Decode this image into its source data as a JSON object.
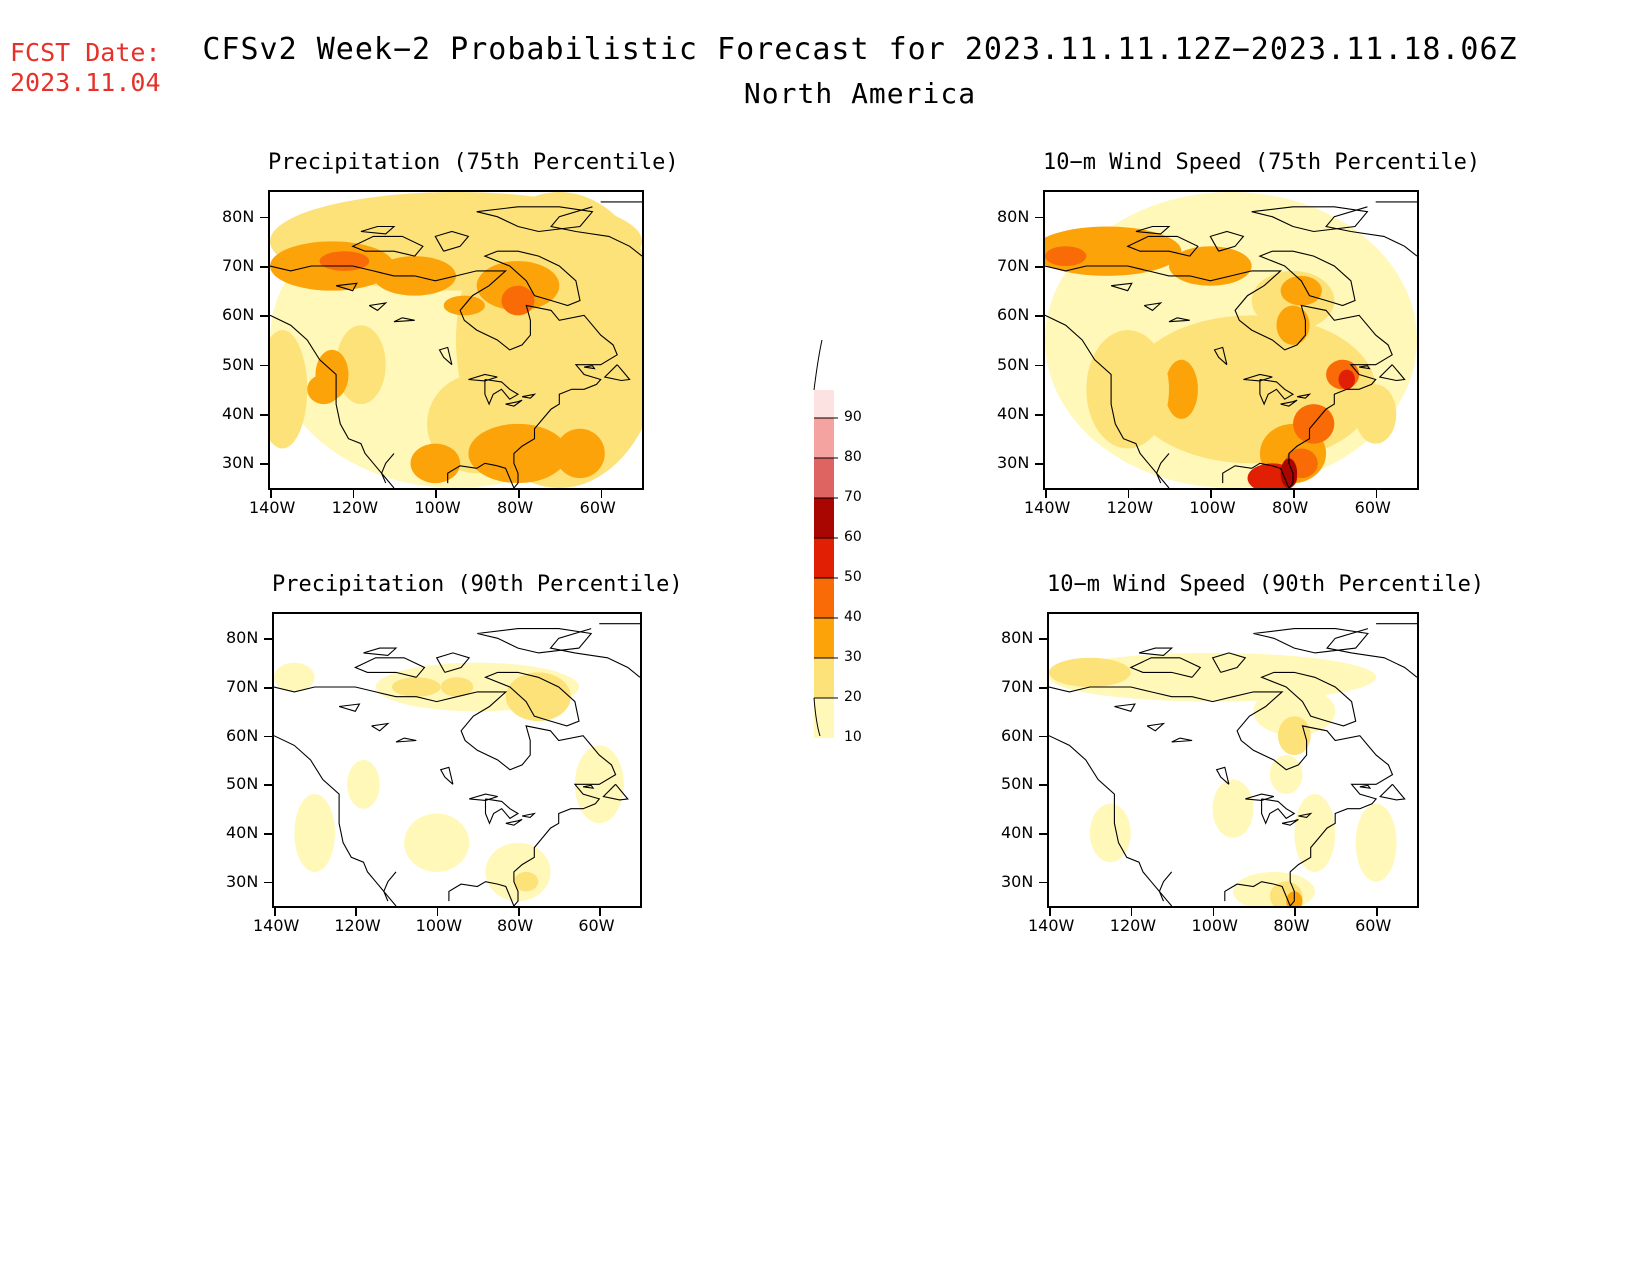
{
  "fcst_label": "FCST Date:",
  "fcst_date": "2023.11.04",
  "title": "CFSv2 Week−2 Probabilistic Forecast for 2023.11.11.12Z−2023.11.18.06Z",
  "subtitle": "North America",
  "panels": [
    {
      "title": "Precipitation (75th Percentile)"
    },
    {
      "title": "10−m Wind Speed (75th Percentile)"
    },
    {
      "title": "Precipitation (90th Percentile)"
    },
    {
      "title": "10−m Wind Speed (90th Percentile)"
    }
  ],
  "lat_labels": [
    "80N",
    "70N",
    "60N",
    "50N",
    "40N",
    "30N"
  ],
  "lon_labels": [
    "140W",
    "120W",
    "100W",
    "80W",
    "60W"
  ],
  "colorbar": {
    "labels": [
      "10",
      "20",
      "30",
      "40",
      "50",
      "60",
      "70",
      "80",
      "90"
    ],
    "colors": [
      "#fff8b8",
      "#fde27a",
      "#fca30a",
      "#f86b06",
      "#e01f05",
      "#a90602",
      "#dd6460",
      "#f4a3a0",
      "#fde2e2"
    ]
  },
  "chart_data": {
    "type": "heatmap",
    "lat_range": [
      25,
      85
    ],
    "lon_range": [
      -140,
      -50
    ],
    "levels": [
      10,
      20,
      30,
      40,
      50,
      60,
      70,
      80,
      90
    ]
  }
}
